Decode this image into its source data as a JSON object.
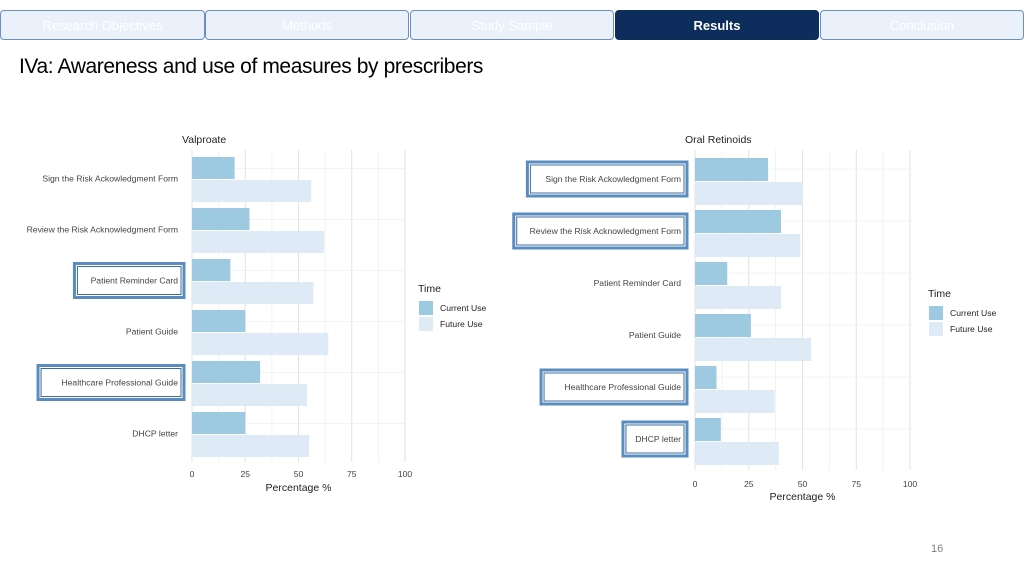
{
  "nav": {
    "tabs": [
      {
        "label": "Research Objectives",
        "active": false
      },
      {
        "label": "Methods",
        "active": false
      },
      {
        "label": "Study Sample",
        "active": false
      },
      {
        "label": "Results",
        "active": true
      },
      {
        "label": "Conclusion",
        "active": false
      }
    ]
  },
  "slide": {
    "title": "IVa: Awareness and use of measures by prescribers",
    "page_number": "16"
  },
  "colors": {
    "current_use": "#9ecae1",
    "future_use": "#deebf7",
    "highlight_border": "#5b8cbf",
    "nav_active": "#0d2d5c",
    "nav_inactive": "#eaf1fb"
  },
  "chart_data": [
    {
      "type": "bar",
      "orientation": "horizontal",
      "title": "Valproate",
      "categories": [
        "Sign the Risk Ackowledgment Form",
        "Review the Risk Acknowledgment Form",
        "Patient Reminder Card",
        "Patient Guide",
        "Healthcare Professional Guide",
        "DHCP letter"
      ],
      "highlighted": [
        "Patient Reminder Card",
        "Healthcare Professional Guide"
      ],
      "series": [
        {
          "name": "Current Use",
          "values": [
            20,
            27,
            18,
            25,
            32,
            25
          ]
        },
        {
          "name": "Future Use",
          "values": [
            56,
            62,
            57,
            64,
            54,
            55
          ]
        }
      ],
      "xlabel": "Percentage %",
      "ylabel": "",
      "xlim": [
        0,
        100
      ],
      "xticks": [
        "0",
        "25",
        "50",
        "75",
        "100"
      ],
      "legend": {
        "title": "Time",
        "entries": [
          "Current Use",
          "Future Use"
        ],
        "placement": "right"
      }
    },
    {
      "type": "bar",
      "orientation": "horizontal",
      "title": "Oral Retinoids",
      "categories": [
        "Sign the Risk Ackowledgment Form",
        "Review the Risk Acknowledgment Form",
        "Patient Reminder Card",
        "Patient Guide",
        "Healthcare Professional Guide",
        "DHCP letter"
      ],
      "highlighted": [
        "Sign the Risk Ackowledgment Form",
        "Review the Risk Acknowledgment Form",
        "Healthcare Professional Guide",
        "DHCP letter"
      ],
      "series": [
        {
          "name": "Current Use",
          "values": [
            34,
            40,
            15,
            26,
            10,
            12
          ]
        },
        {
          "name": "Future Use",
          "values": [
            50,
            49,
            40,
            54,
            37,
            39
          ]
        }
      ],
      "xlabel": "Percentage %",
      "ylabel": "",
      "xlim": [
        0,
        100
      ],
      "xticks": [
        "0",
        "25",
        "50",
        "75",
        "100"
      ],
      "legend": {
        "title": "Time",
        "entries": [
          "Current Use",
          "Future Use"
        ],
        "placement": "right"
      }
    }
  ]
}
